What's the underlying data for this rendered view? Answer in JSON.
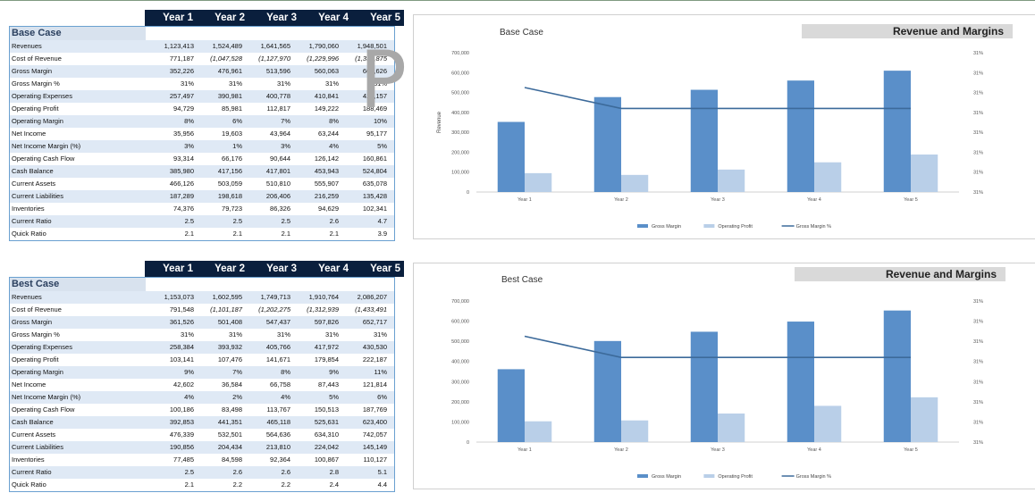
{
  "years": [
    "Year 1",
    "Year 2",
    "Year 3",
    "Year 4",
    "Year 5"
  ],
  "tables": [
    {
      "title": "Base Case",
      "rows": [
        {
          "label": "Revenues",
          "values": [
            "1,123,413",
            "1,524,489",
            "1,641,565",
            "1,790,060",
            "1,948,501"
          ]
        },
        {
          "label": "Cost of Revenue",
          "values": [
            "771,187",
            "(1,047,528",
            "(1,127,970",
            "(1,229,996",
            "(1,338,875"
          ],
          "neg": true
        },
        {
          "label": "Gross Margin",
          "values": [
            "352,226",
            "476,961",
            "513,596",
            "560,063",
            "609,626"
          ]
        },
        {
          "label": "Gross Margin %",
          "values": [
            "31%",
            "31%",
            "31%",
            "31%",
            "31%"
          ]
        },
        {
          "label": "Operating Expenses",
          "values": [
            "257,497",
            "390,981",
            "400,778",
            "410,841",
            "421,157"
          ]
        },
        {
          "label": "Operating Profit",
          "values": [
            "94,729",
            "85,981",
            "112,817",
            "149,222",
            "188,469"
          ]
        },
        {
          "label": "Operating Margin",
          "values": [
            "8%",
            "6%",
            "7%",
            "8%",
            "10%"
          ]
        },
        {
          "label": "Net Income",
          "values": [
            "35,956",
            "19,603",
            "43,964",
            "63,244",
            "95,177"
          ]
        },
        {
          "label": "Net Income Margin (%)",
          "values": [
            "3%",
            "1%",
            "3%",
            "4%",
            "5%"
          ]
        },
        {
          "label": "Operating Cash Flow",
          "values": [
            "93,314",
            "66,176",
            "90,644",
            "126,142",
            "160,861"
          ]
        },
        {
          "label": "Cash Balance",
          "values": [
            "385,980",
            "417,156",
            "417,801",
            "453,943",
            "524,804"
          ]
        },
        {
          "label": "Current Assets",
          "values": [
            "466,126",
            "503,059",
            "510,810",
            "555,907",
            "635,078"
          ]
        },
        {
          "label": "Current Liabilities",
          "values": [
            "187,289",
            "198,618",
            "206,406",
            "216,259",
            "135,428"
          ]
        },
        {
          "label": "Inventories",
          "values": [
            "74,376",
            "79,723",
            "86,326",
            "94,629",
            "102,341"
          ]
        },
        {
          "label": "Current Ratio",
          "values": [
            "2.5",
            "2.5",
            "2.5",
            "2.6",
            "4.7"
          ]
        },
        {
          "label": "Quick Ratio",
          "values": [
            "2.1",
            "2.1",
            "2.1",
            "2.1",
            "3.9"
          ]
        }
      ]
    },
    {
      "title": "Best Case",
      "rows": [
        {
          "label": "Revenues",
          "values": [
            "1,153,073",
            "1,602,595",
            "1,749,713",
            "1,910,764",
            "2,086,207"
          ]
        },
        {
          "label": "Cost of Revenue",
          "values": [
            "791,548",
            "(1,101,187",
            "(1,202,275",
            "(1,312,939",
            "(1,433,491"
          ],
          "neg": true
        },
        {
          "label": "Gross Margin",
          "values": [
            "361,526",
            "501,408",
            "547,437",
            "597,826",
            "652,717"
          ]
        },
        {
          "label": "Gross Margin %",
          "values": [
            "31%",
            "31%",
            "31%",
            "31%",
            "31%"
          ]
        },
        {
          "label": "Operating Expenses",
          "values": [
            "258,384",
            "393,932",
            "405,766",
            "417,972",
            "430,530"
          ]
        },
        {
          "label": "Operating Profit",
          "values": [
            "103,141",
            "107,476",
            "141,671",
            "179,854",
            "222,187"
          ]
        },
        {
          "label": "Operating Margin",
          "values": [
            "9%",
            "7%",
            "8%",
            "9%",
            "11%"
          ]
        },
        {
          "label": "Net Income",
          "values": [
            "42,602",
            "36,584",
            "66,758",
            "87,443",
            "121,814"
          ]
        },
        {
          "label": "Net Income Margin (%)",
          "values": [
            "4%",
            "2%",
            "4%",
            "5%",
            "6%"
          ]
        },
        {
          "label": "Operating Cash Flow",
          "values": [
            "100,186",
            "83,498",
            "113,767",
            "150,513",
            "187,769"
          ]
        },
        {
          "label": "Cash Balance",
          "values": [
            "392,853",
            "441,351",
            "465,118",
            "525,631",
            "623,400"
          ]
        },
        {
          "label": "Current Assets",
          "values": [
            "476,339",
            "532,501",
            "564,636",
            "634,310",
            "742,057"
          ]
        },
        {
          "label": "Current Liabilities",
          "values": [
            "190,856",
            "204,434",
            "213,810",
            "224,042",
            "145,149"
          ]
        },
        {
          "label": "Inventories",
          "values": [
            "77,485",
            "84,598",
            "92,364",
            "100,867",
            "110,127"
          ]
        },
        {
          "label": "Current Ratio",
          "values": [
            "2.5",
            "2.6",
            "2.6",
            "2.8",
            "5.1"
          ]
        },
        {
          "label": "Quick Ratio",
          "values": [
            "2.1",
            "2.2",
            "2.2",
            "2.4",
            "4.4"
          ]
        }
      ]
    }
  ],
  "watermark": "P",
  "chart_data": [
    {
      "type": "bar",
      "title": "Base Case",
      "banner": "Revenue and Margins",
      "categories": [
        "Year 1",
        "Year 2",
        "Year 3",
        "Year 4",
        "Year 5"
      ],
      "ylabel": "Revenue",
      "ylim": [
        0,
        700000
      ],
      "yticks": [
        "0",
        "100,000",
        "200,000",
        "300,000",
        "400,000",
        "500,000",
        "600,000",
        "700,000"
      ],
      "y2ticks": [
        "31%",
        "31%",
        "31%",
        "31%",
        "31%",
        "31%",
        "31%",
        "31%"
      ],
      "series": [
        {
          "name": "Gross Margin",
          "values": [
            352226,
            476961,
            513596,
            560063,
            609626
          ],
          "color": "#5a8fc9"
        },
        {
          "name": "Operating Profit",
          "values": [
            94729,
            85981,
            112817,
            149222,
            188469
          ],
          "color": "#b9cfe8"
        },
        {
          "name": "Gross Margin %",
          "type": "line",
          "values": [
            0.3135,
            0.3129,
            0.3129,
            0.3129,
            0.3129
          ],
          "color": "#3c6a9a"
        }
      ],
      "y2lim": [
        0.3105,
        0.3145
      ]
    },
    {
      "type": "bar",
      "title": "Best Case",
      "banner": "Revenue and Margins",
      "categories": [
        "Year 1",
        "Year 2",
        "Year 3",
        "Year 4",
        "Year 5"
      ],
      "ylabel": "",
      "ylim": [
        0,
        700000
      ],
      "yticks": [
        "0",
        "100,000",
        "200,000",
        "300,000",
        "400,000",
        "500,000",
        "600,000",
        "700,000"
      ],
      "y2ticks": [
        "31%",
        "31%",
        "31%",
        "31%",
        "31%",
        "31%",
        "31%",
        "31%"
      ],
      "series": [
        {
          "name": "Gross Margin",
          "values": [
            361526,
            501408,
            547437,
            597826,
            652717
          ],
          "color": "#5a8fc9"
        },
        {
          "name": "Operating Profit",
          "values": [
            103141,
            107476,
            141671,
            179854,
            222187
          ],
          "color": "#b9cfe8"
        },
        {
          "name": "Gross Margin %",
          "type": "line",
          "values": [
            0.3135,
            0.3129,
            0.3129,
            0.3129,
            0.3129
          ],
          "color": "#3c6a9a"
        }
      ],
      "y2lim": [
        0.3105,
        0.3145
      ]
    }
  ]
}
